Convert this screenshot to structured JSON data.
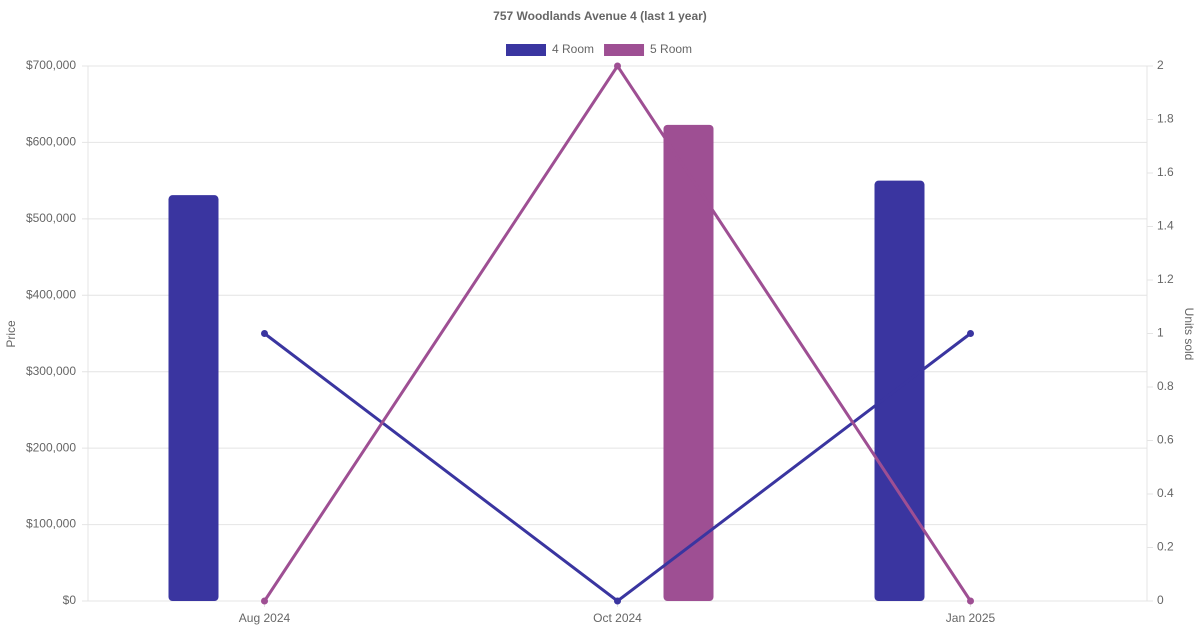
{
  "chart_data": {
    "type": "combo",
    "title": "757 Woodlands Avenue 4 (last 1 year)",
    "y_label": "Price",
    "y2_label": "Units sold",
    "categories": [
      "Aug 2024",
      "Oct 2024",
      "Jan 2025"
    ],
    "series": [
      {
        "name": "4 Room",
        "color": "#3a35a0",
        "values": [
          531000,
          null,
          550000
        ],
        "units_sold": [
          1,
          0,
          1
        ]
      },
      {
        "name": "5 Room",
        "color": "#9e4f93",
        "values": [
          null,
          623000,
          null
        ],
        "units_sold": [
          0,
          2,
          0
        ]
      }
    ],
    "ylim": [
      0,
      700000
    ],
    "yticks": [
      {
        "value": 0,
        "label": "$0"
      },
      {
        "value": 100000,
        "label": "$100,000"
      },
      {
        "value": 200000,
        "label": "$200,000"
      },
      {
        "value": 300000,
        "label": "$300,000"
      },
      {
        "value": 400000,
        "label": "$400,000"
      },
      {
        "value": 500000,
        "label": "$500,000"
      },
      {
        "value": 600000,
        "label": "$600,000"
      },
      {
        "value": 700000,
        "label": "$700,000"
      }
    ],
    "y2lim": [
      0,
      2
    ],
    "y2ticks": [
      0,
      0.2,
      0.4,
      0.6,
      0.8,
      1,
      1.2,
      1.4,
      1.6,
      1.8,
      2
    ],
    "grid": true
  }
}
